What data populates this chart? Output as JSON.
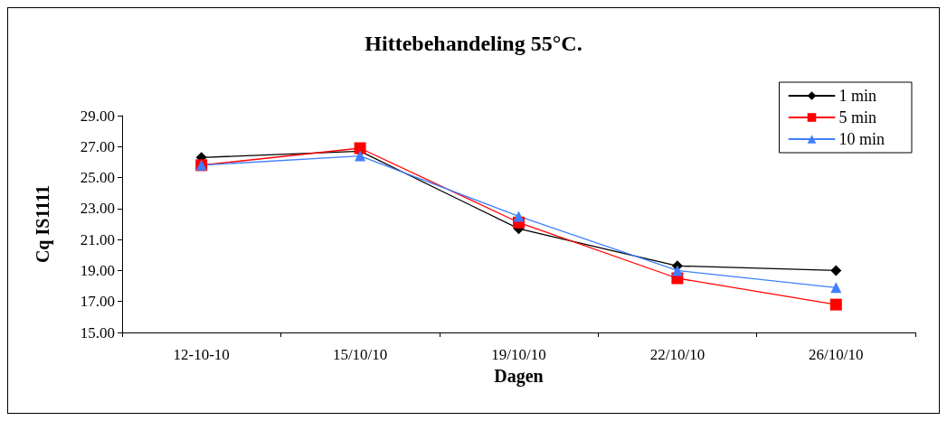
{
  "chart_data": {
    "type": "line",
    "title": "Hittebehandeling 55°C.",
    "xlabel": "Dagen",
    "ylabel": "Cq IS1111",
    "categories": [
      "12-10-10",
      "15/10/10",
      "19/10/10",
      "22/10/10",
      "26/10/10"
    ],
    "series": [
      {
        "name": "1 min",
        "color": "#000000",
        "marker": "diamond",
        "values": [
          26.3,
          26.7,
          21.7,
          19.3,
          19.0
        ]
      },
      {
        "name": "5 min",
        "color": "#ff0000",
        "marker": "square",
        "values": [
          25.8,
          26.9,
          22.1,
          18.5,
          16.8
        ]
      },
      {
        "name": "10 min",
        "color": "#3f7fff",
        "marker": "triangle",
        "values": [
          25.8,
          26.4,
          22.5,
          19.0,
          17.9
        ]
      }
    ],
    "ylim": [
      15,
      29
    ],
    "yticks": [
      {
        "value": 15,
        "label": "15.00"
      },
      {
        "value": 17,
        "label": "17.00"
      },
      {
        "value": 19,
        "label": "19.00"
      },
      {
        "value": 21,
        "label": "21.00"
      },
      {
        "value": 23,
        "label": "23.00"
      },
      {
        "value": 25,
        "label": "25.00"
      },
      {
        "value": 27,
        "label": "27.00"
      },
      {
        "value": 29,
        "label": "29.00"
      }
    ],
    "grid": false,
    "legend": "top right",
    "line_style": "solid"
  }
}
